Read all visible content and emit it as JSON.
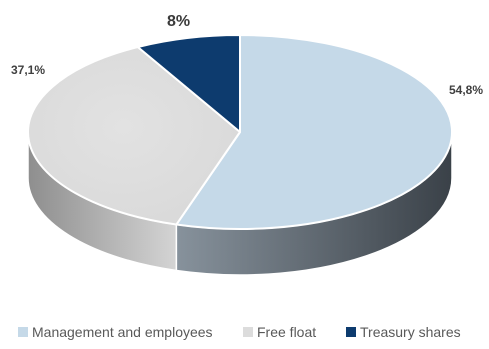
{
  "chart_data": {
    "type": "pie",
    "title": "",
    "series": [
      {
        "name": "Management and employees",
        "value": 54.8,
        "label": "54,8%",
        "color": "#c5d9e8",
        "side_light": "#87929c",
        "side_dark": "#3a4148"
      },
      {
        "name": "Free float",
        "value": 37.1,
        "label": "37,1%",
        "color": "#dcdcdc",
        "side_light": "#cfcfcf",
        "side_dark": "#8e8e8e"
      },
      {
        "name": "Treasury shares",
        "value": 8,
        "label": "8%",
        "color": "#0d3b6e",
        "side_light": "#0a2c52",
        "side_dark": "#071f3a"
      }
    ],
    "style": "3d-pie",
    "legend_position": "bottom"
  }
}
